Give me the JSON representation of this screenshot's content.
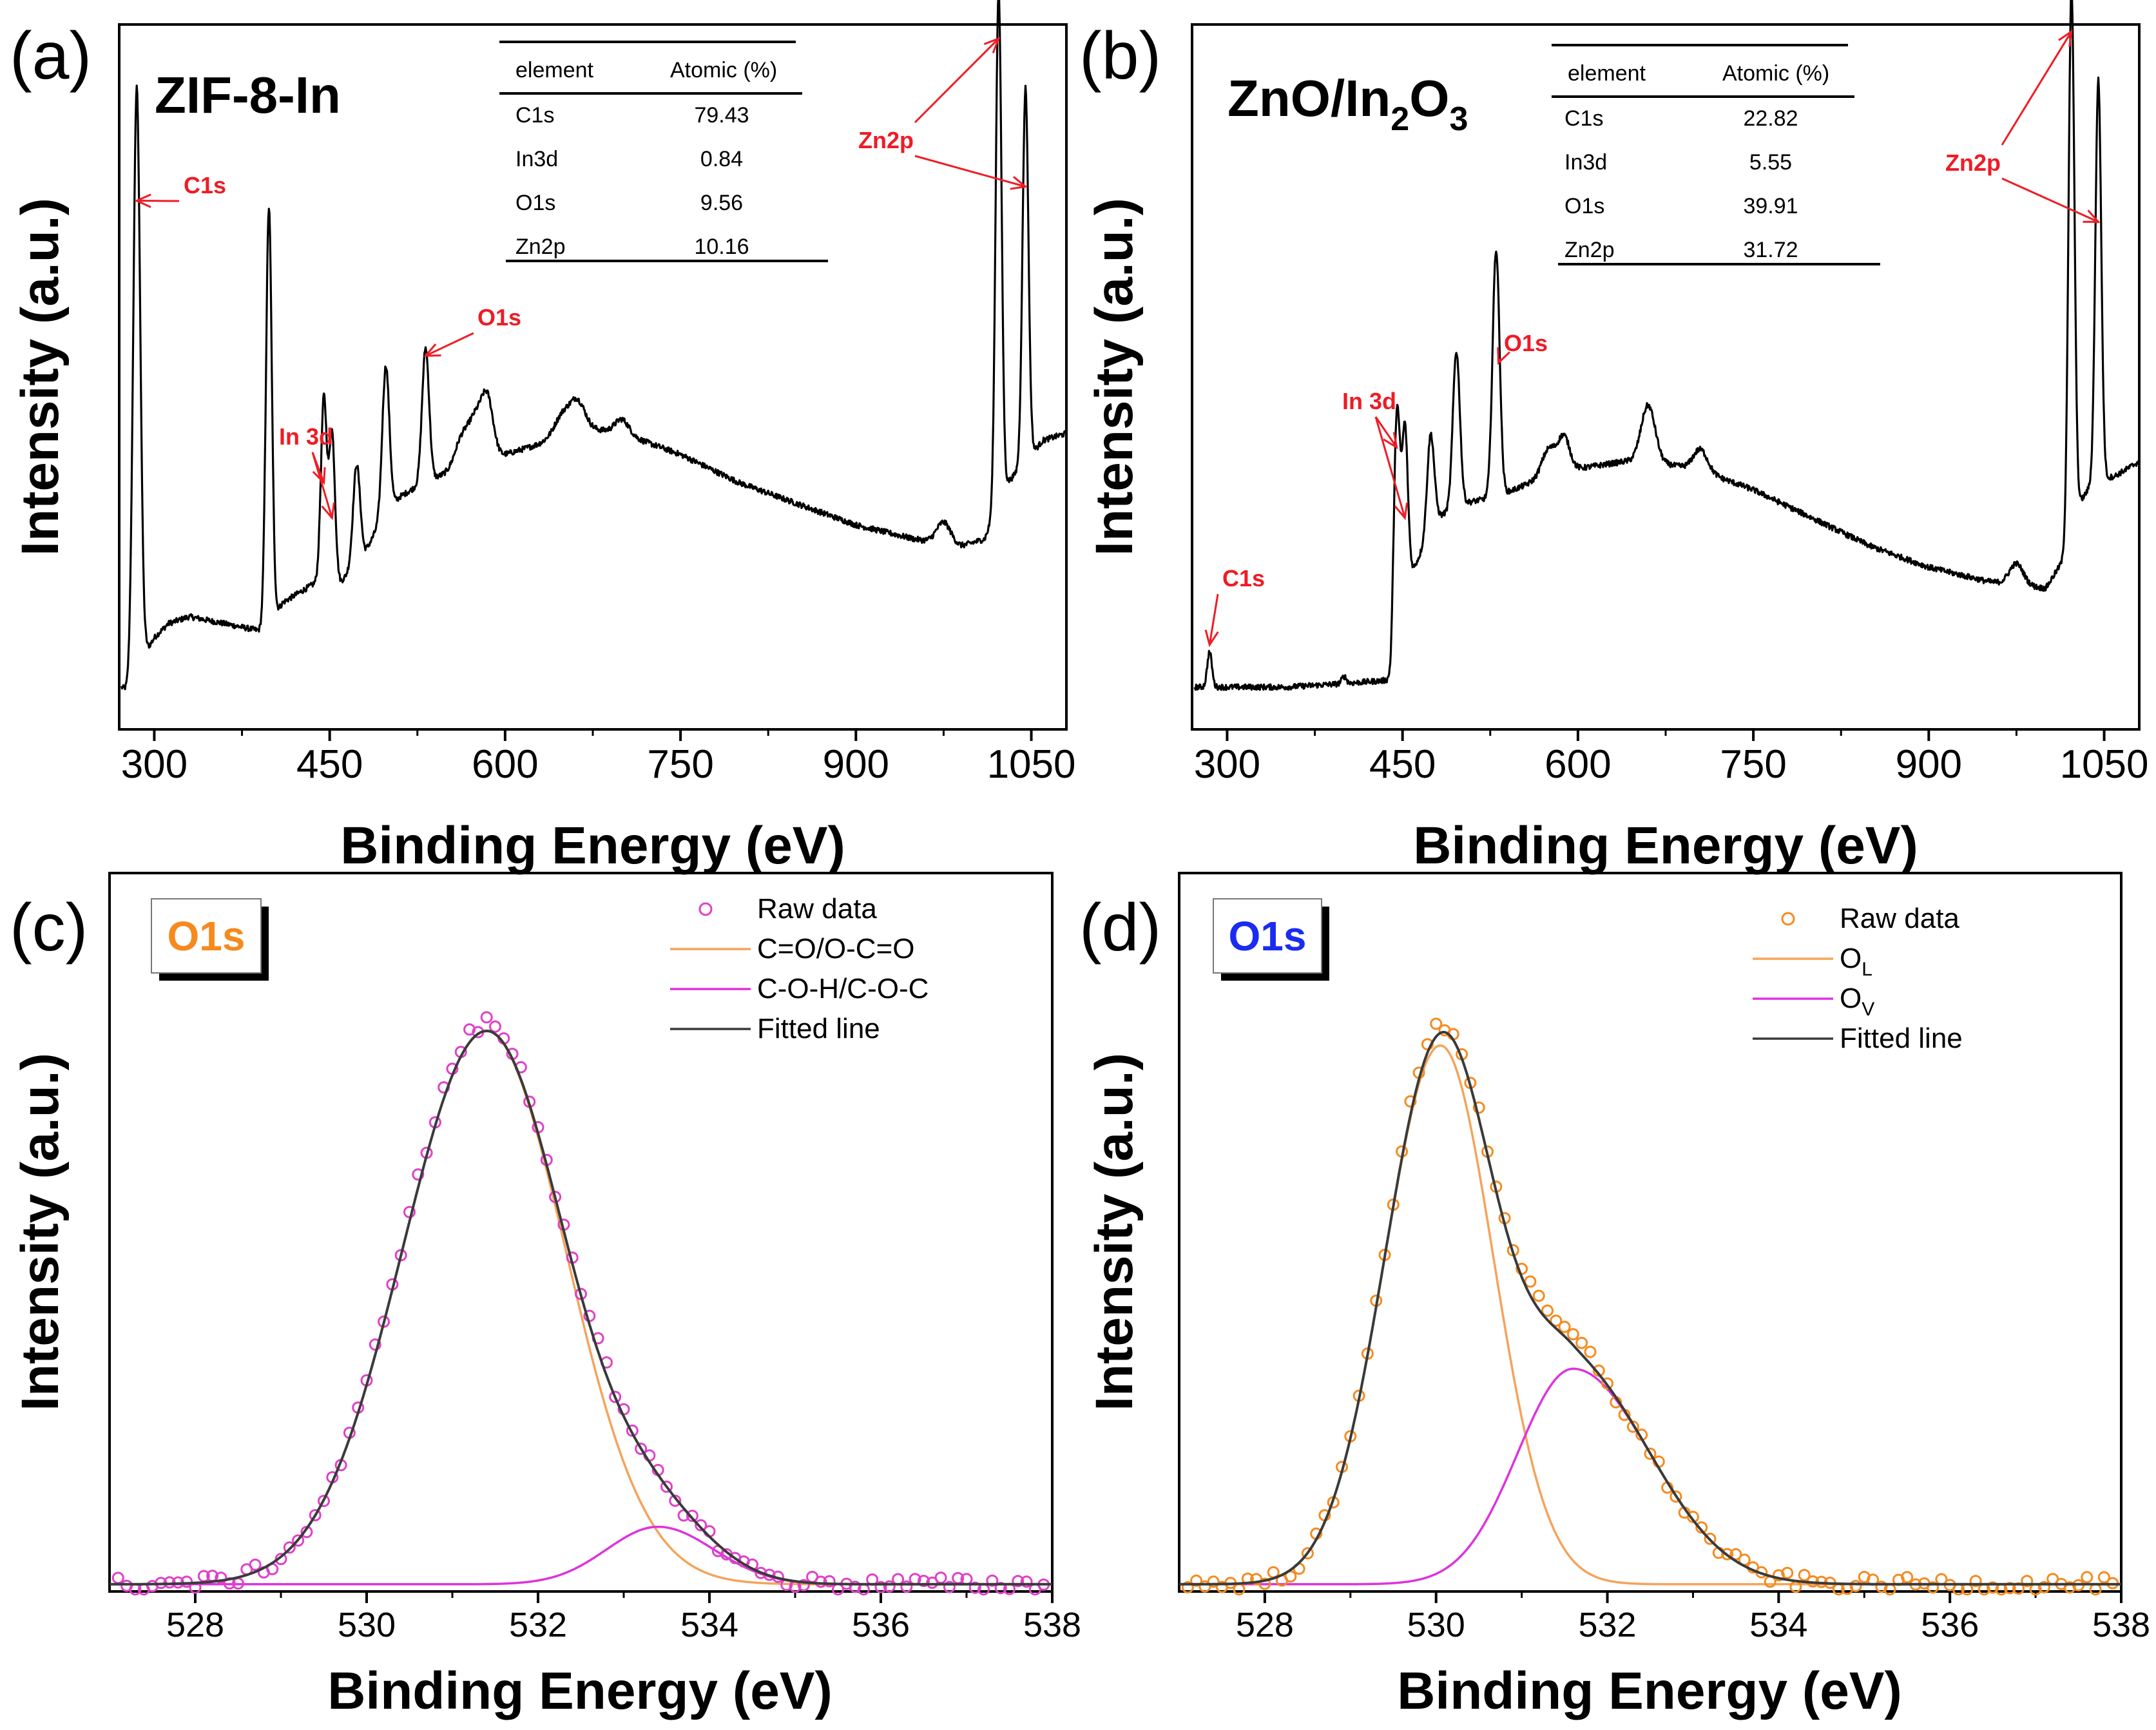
{
  "colors": {
    "axis": "#000000",
    "spectrum": "#000000",
    "annotation": "#ee1c25",
    "raw_c": "#e040c8",
    "raw_d": "#f58a1f",
    "fit_orange": "#f5a35a",
    "fit_magenta": "#dd33dd",
    "fitted": "#3a3a3a",
    "o1s_orange": "#f58a1f",
    "o1s_blue": "#1a2cf0",
    "shadow": "#000000"
  },
  "chart_data": [
    {
      "id": "a",
      "panel_label": "(a)",
      "type": "line",
      "sample_label": "ZIF-8-In",
      "xlabel": "Binding Energy (eV)",
      "ylabel": "Intensity (a.u.)",
      "xlim": [
        270,
        1080
      ],
      "ylim": [
        0,
        1
      ],
      "xticks": [
        300,
        450,
        600,
        750,
        900,
        1050
      ],
      "xtick_labels": [
        "300",
        "450",
        "600",
        "750",
        "900",
        "1050"
      ],
      "baseline": [
        [
          272,
          0.06
        ],
        [
          280,
          0.05
        ],
        [
          287,
          0.05
        ],
        [
          293,
          0.11
        ],
        [
          300,
          0.13
        ],
        [
          312,
          0.15
        ],
        [
          330,
          0.16
        ],
        [
          360,
          0.15
        ],
        [
          390,
          0.14
        ],
        [
          398,
          0.15
        ],
        [
          410,
          0.18
        ],
        [
          440,
          0.21
        ],
        [
          460,
          0.21
        ],
        [
          480,
          0.25
        ],
        [
          495,
          0.3
        ],
        [
          510,
          0.33
        ],
        [
          530,
          0.35
        ],
        [
          560,
          0.37
        ],
        [
          600,
          0.39
        ],
        [
          640,
          0.41
        ],
        [
          660,
          0.43
        ],
        [
          700,
          0.42
        ],
        [
          750,
          0.39
        ],
        [
          800,
          0.35
        ],
        [
          850,
          0.32
        ],
        [
          900,
          0.29
        ],
        [
          950,
          0.27
        ],
        [
          990,
          0.26
        ],
        [
          1010,
          0.27
        ],
        [
          1020,
          0.31
        ],
        [
          1030,
          0.35
        ],
        [
          1040,
          0.37
        ],
        [
          1060,
          0.41
        ],
        [
          1080,
          0.42
        ]
      ],
      "peaks": [
        [
          285,
          0.86,
          3
        ],
        [
          398,
          0.59,
          2.5
        ],
        [
          445,
          0.26,
          2.5
        ],
        [
          452,
          0.21,
          2.5
        ],
        [
          473,
          0.14,
          3
        ],
        [
          498,
          0.21,
          3
        ],
        [
          532,
          0.19,
          3
        ],
        [
          563,
          0.04,
          6
        ],
        [
          575,
          0.06,
          6
        ],
        [
          585,
          0.08,
          5
        ],
        [
          650,
          0.03,
          8
        ],
        [
          663,
          0.03,
          6
        ],
        [
          700,
          0.02,
          6
        ],
        [
          975,
          0.03,
          6
        ],
        [
          1022,
          0.73,
          2.5
        ],
        [
          1045,
          0.53,
          2.5
        ]
      ],
      "table": {
        "header": [
          "element",
          "Atomic (%)"
        ],
        "rows": [
          [
            "C1s",
            "79.43"
          ],
          [
            "In3d",
            "0.84"
          ],
          [
            "O1s",
            "9.56"
          ],
          [
            "Zn2p",
            "10.16"
          ]
        ]
      },
      "annotations": [
        {
          "text": "C1s",
          "arrows": [
            [
              285,
              0.75
            ]
          ]
        },
        {
          "text": "In 3d",
          "arrows": [
            [
              445,
              0.35
            ],
            [
              452,
              0.3
            ]
          ]
        },
        {
          "text": "O1s",
          "arrows": [
            [
              532,
              0.53
            ]
          ]
        },
        {
          "text": "Zn2p",
          "arrows": [
            [
              1022,
              0.98
            ],
            [
              1045,
              0.77
            ]
          ]
        }
      ]
    },
    {
      "id": "b",
      "panel_label": "(b)",
      "type": "line",
      "sample_label": "ZnO/In",
      "sample_label_sub": [
        "2",
        "3"
      ],
      "sample_label_mid": "O",
      "xlabel": "Binding Energy (eV)",
      "ylabel": "Intensity (a.u.)",
      "xlim": [
        270,
        1080
      ],
      "ylim": [
        0,
        1
      ],
      "xticks": [
        300,
        450,
        600,
        750,
        900,
        1050
      ],
      "xtick_labels": [
        "300",
        "450",
        "600",
        "750",
        "900",
        "1050"
      ],
      "baseline": [
        [
          272,
          0.06
        ],
        [
          300,
          0.06
        ],
        [
          350,
          0.06
        ],
        [
          400,
          0.065
        ],
        [
          440,
          0.07
        ],
        [
          448,
          0.2
        ],
        [
          460,
          0.23
        ],
        [
          480,
          0.3
        ],
        [
          500,
          0.32
        ],
        [
          530,
          0.33
        ],
        [
          560,
          0.35
        ],
        [
          600,
          0.37
        ],
        [
          640,
          0.38
        ],
        [
          660,
          0.38
        ],
        [
          700,
          0.37
        ],
        [
          750,
          0.34
        ],
        [
          800,
          0.3
        ],
        [
          850,
          0.26
        ],
        [
          900,
          0.23
        ],
        [
          950,
          0.21
        ],
        [
          1000,
          0.2
        ],
        [
          1015,
          0.24
        ],
        [
          1025,
          0.31
        ],
        [
          1040,
          0.35
        ],
        [
          1060,
          0.36
        ],
        [
          1080,
          0.38
        ]
      ],
      "peaks": [
        [
          285,
          0.05,
          2
        ],
        [
          400,
          0.01,
          2
        ],
        [
          445,
          0.3,
          2.5
        ],
        [
          452,
          0.22,
          2.5
        ],
        [
          474,
          0.14,
          3
        ],
        [
          496,
          0.22,
          3
        ],
        [
          530,
          0.35,
          3
        ],
        [
          575,
          0.04,
          6
        ],
        [
          588,
          0.05,
          5
        ],
        [
          660,
          0.08,
          6
        ],
        [
          705,
          0.03,
          6
        ],
        [
          975,
          0.03,
          6
        ],
        [
          1022,
          0.76,
          2.5
        ],
        [
          1045,
          0.57,
          2.5
        ]
      ],
      "table": {
        "header": [
          "element",
          "Atomic (%)"
        ],
        "rows": [
          [
            "C1s",
            "22.82"
          ],
          [
            "In3d",
            "5.55"
          ],
          [
            "O1s",
            "39.91"
          ],
          [
            "Zn2p",
            "31.72"
          ]
        ]
      },
      "annotations": [
        {
          "text": "C1s",
          "arrows": [
            [
              285,
              0.12
            ]
          ]
        },
        {
          "text": "In 3d",
          "arrows": [
            [
              445,
              0.4
            ],
            [
              452,
              0.3
            ]
          ]
        },
        {
          "text": "O1s",
          "arrows": [
            [
              532,
              0.52
            ]
          ]
        },
        {
          "text": "Zn2p",
          "arrows": [
            [
              1022,
              0.99
            ],
            [
              1045,
              0.72
            ]
          ]
        }
      ]
    },
    {
      "id": "c",
      "panel_label": "(c)",
      "type": "scatter",
      "box_label": "O1s",
      "box_label_color_key": "o1s_orange",
      "xlabel": "Binding Energy (eV)",
      "ylabel": "Intensity (a.u.)",
      "xlim": [
        527,
        538
      ],
      "ylim": [
        0,
        1
      ],
      "xticks": [
        528,
        530,
        532,
        534,
        536,
        538
      ],
      "xtick_labels": [
        "528",
        "530",
        "532",
        "534",
        "536",
        "538"
      ],
      "offset": 0.01,
      "components": [
        {
          "name": "C=O/O-C=O",
          "center": 531.4,
          "amp": 0.77,
          "sigma_left": 0.98,
          "sigma_right": 0.92,
          "color_key": "fit_orange"
        },
        {
          "name": "C-O-H/C-O-C",
          "center": 533.4,
          "amp": 0.08,
          "sigma_left": 0.6,
          "sigma_right": 0.65,
          "color_key": "fit_magenta"
        }
      ],
      "legend": [
        {
          "label": "Raw data",
          "kind": "marker",
          "color_key": "raw_c"
        },
        {
          "label": "C=O/O-C=O",
          "kind": "line",
          "color_key": "fit_orange"
        },
        {
          "label": "C-O-H/C-O-C",
          "kind": "line",
          "color_key": "fit_magenta"
        },
        {
          "label": "Fitted line",
          "kind": "line",
          "color_key": "fitted"
        }
      ],
      "raw_step": 0.1,
      "raw_color_key": "raw_c"
    },
    {
      "id": "d",
      "panel_label": "(d)",
      "type": "scatter",
      "box_label": "O1s",
      "box_label_color_key": "o1s_blue",
      "xlabel": "Binding Energy (eV)",
      "ylabel": "Intensity (a.u.)",
      "xlim": [
        527,
        538
      ],
      "ylim": [
        0,
        1
      ],
      "xticks": [
        528,
        530,
        532,
        534,
        536,
        538
      ],
      "xtick_labels": [
        "528",
        "530",
        "532",
        "534",
        "536",
        "538"
      ],
      "offset": 0.01,
      "components": [
        {
          "name": "O_L",
          "center": 530.05,
          "amp": 0.75,
          "sigma_left": 0.65,
          "sigma_right": 0.62,
          "color_key": "fit_orange"
        },
        {
          "name": "O_V",
          "center": 531.6,
          "amp": 0.3,
          "sigma_left": 0.65,
          "sigma_right": 0.9,
          "color_key": "fit_magenta"
        }
      ],
      "legend": [
        {
          "label": "Raw data",
          "kind": "marker",
          "color_key": "raw_d"
        },
        {
          "label": "O",
          "sub": "L",
          "kind": "line",
          "color_key": "fit_orange"
        },
        {
          "label": "O",
          "sub": "V",
          "kind": "line",
          "color_key": "fit_magenta"
        },
        {
          "label": "Fitted line",
          "kind": "line",
          "color_key": "fitted"
        }
      ],
      "raw_step": 0.1,
      "raw_color_key": "raw_d"
    }
  ]
}
